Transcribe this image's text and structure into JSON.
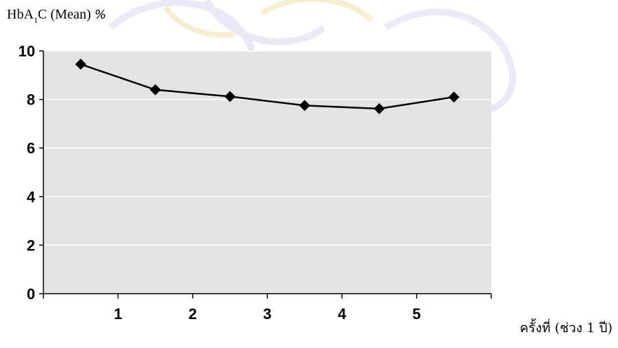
{
  "chart_data": {
    "type": "line",
    "title": "",
    "ylabel_parts": {
      "prefix": "HbA",
      "subscript": "1",
      "suffix": "C (Mean) ",
      "unit": "%"
    },
    "xlabel": "ครั้งที่ (ช่วง 1 ปี)",
    "x_tick_labels": [
      "1",
      "2",
      "3",
      "4",
      "5"
    ],
    "x_positions": [
      0.5,
      1.5,
      2.5,
      3.5,
      4.5,
      5.5
    ],
    "xlim": [
      0,
      6
    ],
    "ylim": [
      0,
      10
    ],
    "y_ticks": [
      0,
      2,
      4,
      6,
      8,
      10
    ],
    "grid": true,
    "legend": "none",
    "series": [
      {
        "values": [
          9.45,
          8.4,
          8.12,
          7.75,
          7.62,
          8.1
        ],
        "color": "#000000",
        "marker": "diamond"
      }
    ]
  },
  "colors": {
    "plot_background": "#e3e3e3",
    "gridline": "#ffffff",
    "axis": "#000000",
    "watermark": "#d9d4ef"
  }
}
